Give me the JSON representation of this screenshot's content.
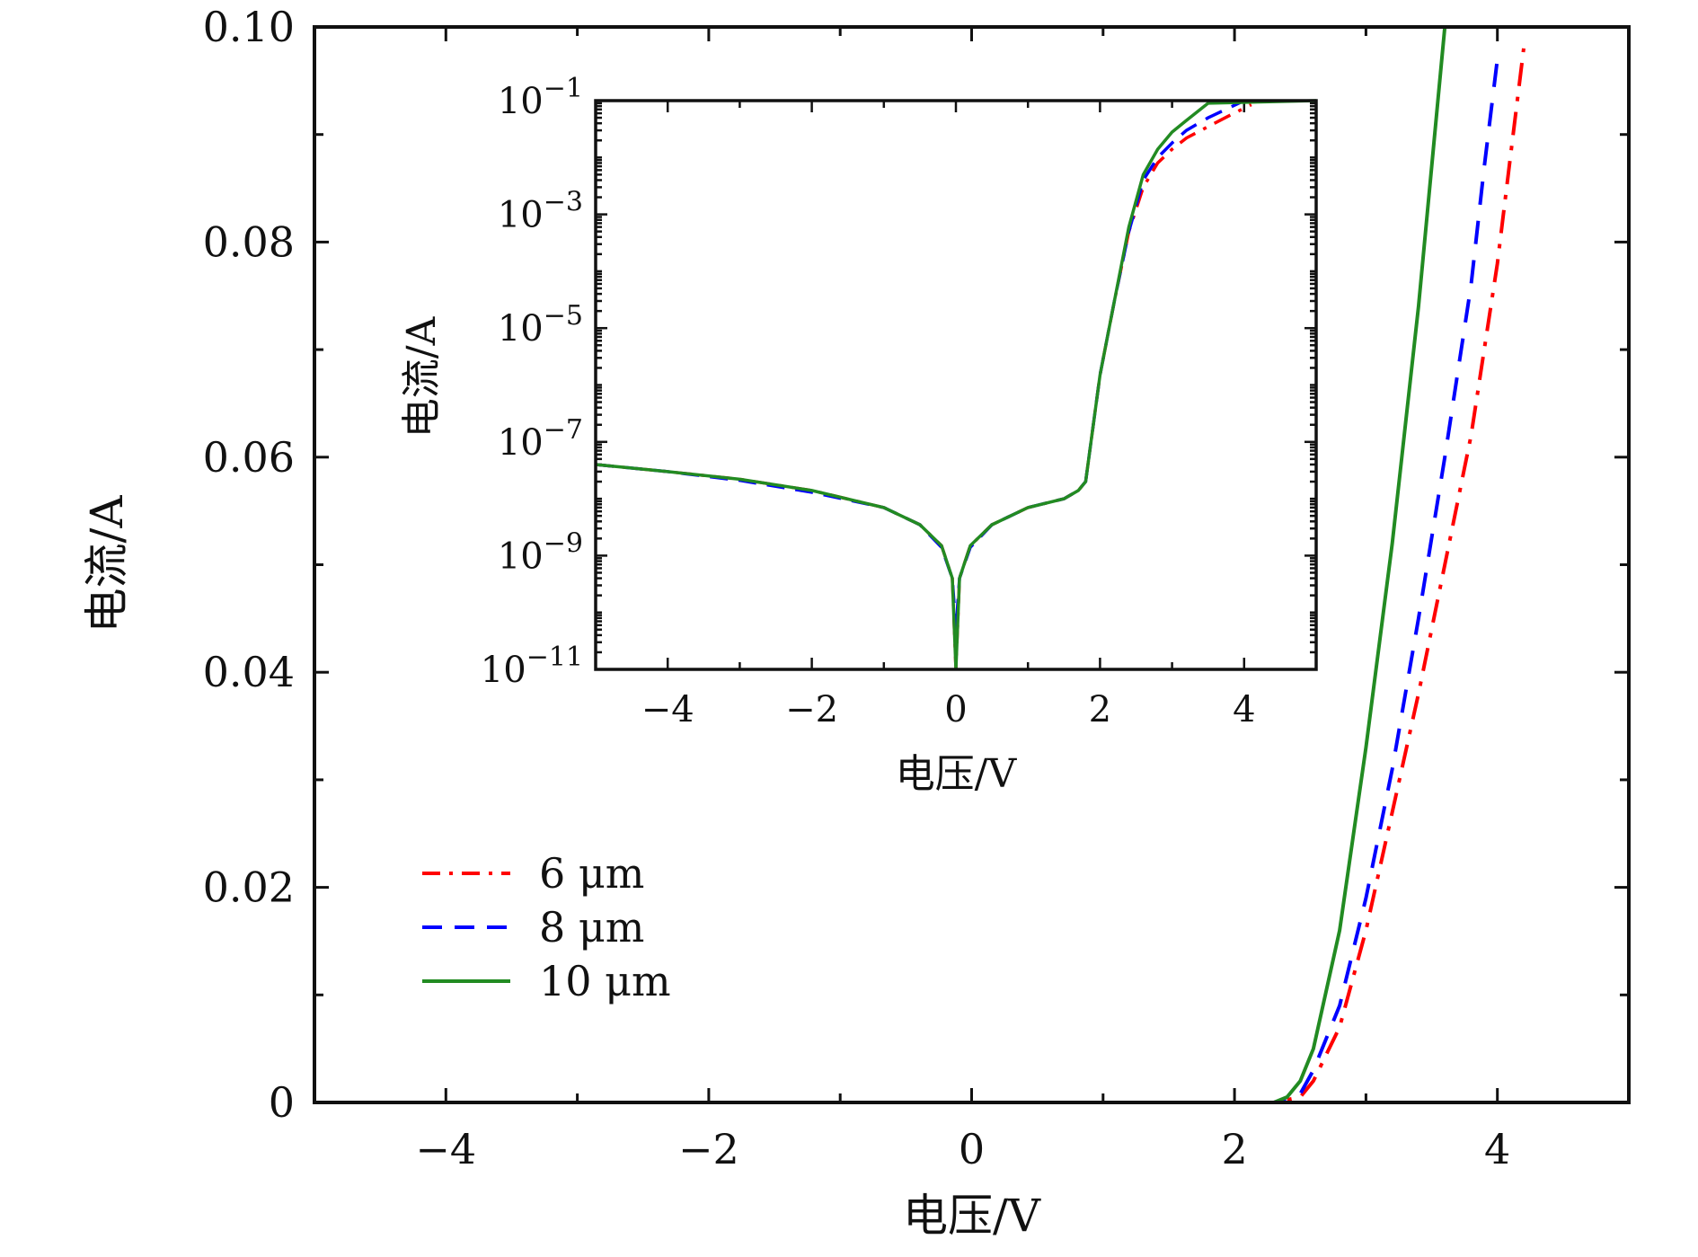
{
  "chart_data": [
    {
      "type": "line",
      "xlabel": "电压/V",
      "ylabel": "电流/A",
      "xlim": [
        -5,
        5
      ],
      "ylim": [
        0,
        0.1
      ],
      "x_ticks": [
        -4,
        -2,
        0,
        2,
        4
      ],
      "x_tick_labels": [
        "−4",
        "−2",
        "0",
        "2",
        "4"
      ],
      "y_ticks": [
        0,
        0.02,
        0.04,
        0.06,
        0.08,
        0.1
      ],
      "y_tick_labels": [
        "0",
        "0.02",
        "0.04",
        "0.06",
        "0.08",
        "0.10"
      ],
      "legend_position": "lower-left",
      "grid": false,
      "series": [
        {
          "name": "6 μm",
          "color": "#ff0000",
          "style": "dash-dot",
          "x": [
            -5,
            2.0,
            2.3,
            2.5,
            2.6,
            2.8,
            3.0,
            3.2,
            3.4,
            3.6,
            3.8,
            4.0,
            4.1,
            4.2
          ],
          "y": [
            0,
            0,
            0,
            0.0005,
            0.002,
            0.007,
            0.016,
            0.027,
            0.038,
            0.05,
            0.062,
            0.078,
            0.088,
            0.098
          ]
        },
        {
          "name": "8 μm",
          "color": "#0000ff",
          "style": "dashed",
          "x": [
            -5,
            2.0,
            2.3,
            2.5,
            2.6,
            2.8,
            3.0,
            3.2,
            3.4,
            3.6,
            3.8,
            3.9,
            4.0
          ],
          "y": [
            0,
            0,
            0,
            0.0008,
            0.003,
            0.009,
            0.019,
            0.031,
            0.045,
            0.06,
            0.076,
            0.087,
            0.097
          ]
        },
        {
          "name": "10 μm",
          "color": "#228b22",
          "style": "solid",
          "x": [
            -5,
            2.0,
            2.3,
            2.4,
            2.5,
            2.6,
            2.8,
            3.0,
            3.2,
            3.4,
            3.6
          ],
          "y": [
            0,
            0,
            0,
            0.0005,
            0.002,
            0.005,
            0.016,
            0.033,
            0.052,
            0.074,
            0.1
          ]
        }
      ]
    },
    {
      "type": "line",
      "role": "inset",
      "xlabel": "电压/V",
      "ylabel": "电流/A",
      "xlim": [
        -5,
        5
      ],
      "ylim": [
        1e-11,
        0.1
      ],
      "y_scale": "log",
      "x_ticks": [
        -4,
        -2,
        0,
        2,
        4
      ],
      "x_tick_labels": [
        "−4",
        "−2",
        "0",
        "2",
        "4"
      ],
      "y_ticks": [
        1e-11,
        1e-09,
        1e-07,
        1e-05,
        0.001,
        0.1
      ],
      "y_tick_labels": [
        {
          "base": "10",
          "exp": "−11"
        },
        {
          "base": "10",
          "exp": "−9"
        },
        {
          "base": "10",
          "exp": "−7"
        },
        {
          "base": "10",
          "exp": "−5"
        },
        {
          "base": "10",
          "exp": "−3"
        },
        {
          "base": "10",
          "exp": "−1"
        }
      ],
      "grid": false,
      "series": [
        {
          "name": "6 μm",
          "color": "#ff0000",
          "style": "dash-dot",
          "x": [
            -5,
            -4,
            -3,
            -2,
            -1,
            -0.5,
            -0.2,
            -0.05,
            0,
            0.05,
            0.2,
            0.5,
            1,
            1.5,
            1.7,
            1.8,
            2.0,
            2.2,
            2.4,
            2.6,
            2.8,
            3.0,
            3.2,
            3.5,
            3.8,
            4.1
          ],
          "y": [
            4e-08,
            3e-08,
            2.2e-08,
            1.4e-08,
            7e-09,
            3.5e-09,
            1.5e-09,
            4e-10,
            1e-11,
            4e-10,
            1.5e-09,
            3.5e-09,
            7e-09,
            1e-08,
            1.4e-08,
            2e-08,
            1.5e-06,
            3e-05,
            0.0005,
            0.003,
            0.008,
            0.014,
            0.022,
            0.035,
            0.055,
            0.085
          ]
        },
        {
          "name": "8 μm",
          "color": "#0000ff",
          "style": "dashed",
          "x": [
            -5,
            -4,
            -3,
            -2,
            -1,
            -0.5,
            -0.2,
            -0.05,
            0,
            0.05,
            0.2,
            0.5,
            1,
            1.5,
            1.7,
            1.8,
            2.0,
            2.2,
            2.4,
            2.6,
            2.8,
            3.0,
            3.2,
            3.5,
            4.0
          ],
          "y": [
            4e-08,
            3e-08,
            2.1e-08,
            1.3e-08,
            7e-09,
            3.5e-09,
            1.4e-09,
            4e-10,
            5e-11,
            4e-10,
            1.4e-09,
            3.5e-09,
            7e-09,
            1e-08,
            1.4e-08,
            2e-08,
            1.5e-06,
            3e-05,
            0.0005,
            0.004,
            0.01,
            0.018,
            0.03,
            0.05,
            0.1
          ]
        },
        {
          "name": "10 μm",
          "color": "#228b22",
          "style": "solid",
          "x": [
            -5,
            -4,
            -3,
            -2,
            -1,
            -0.5,
            -0.2,
            -0.05,
            0,
            0.05,
            0.2,
            0.5,
            1,
            1.5,
            1.7,
            1.8,
            2.0,
            2.2,
            2.4,
            2.6,
            2.8,
            3.0,
            3.2,
            3.5,
            5.0
          ],
          "y": [
            4e-08,
            3e-08,
            2.2e-08,
            1.4e-08,
            7e-09,
            3.5e-09,
            1.5e-09,
            4e-10,
            1e-11,
            4e-10,
            1.5e-09,
            3.5e-09,
            7e-09,
            1e-08,
            1.4e-08,
            2e-08,
            1.5e-06,
            3e-05,
            0.0006,
            0.005,
            0.014,
            0.028,
            0.045,
            0.09,
            0.1
          ]
        }
      ]
    }
  ]
}
